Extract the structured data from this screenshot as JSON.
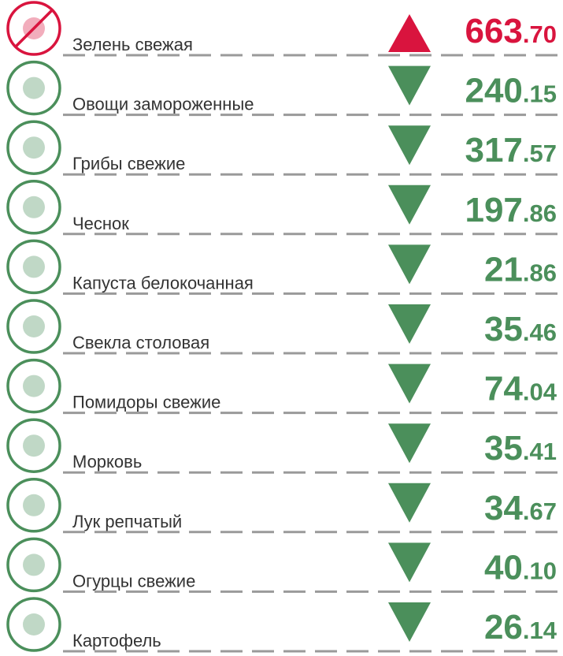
{
  "colors": {
    "up": "#d9143e",
    "down": "#4b8f5b",
    "dash": "#9a9a9a"
  },
  "items": [
    {
      "name": "Зелень свежая",
      "value": "663.70",
      "trend": "up"
    },
    {
      "name": "Овощи замороженные",
      "value": "240.15",
      "trend": "down"
    },
    {
      "name": "Грибы свежие",
      "value": "317.57",
      "trend": "down"
    },
    {
      "name": "Чеснок",
      "value": "197.86",
      "trend": "down"
    },
    {
      "name": "Капуста белокочанная",
      "value": "21.86",
      "trend": "down"
    },
    {
      "name": "Свекла столовая",
      "value": "35.46",
      "trend": "down"
    },
    {
      "name": "Помидоры свежие",
      "value": "74.04",
      "trend": "down"
    },
    {
      "name": "Морковь",
      "value": "35.41",
      "trend": "down"
    },
    {
      "name": "Лук репчатый",
      "value": "34.67",
      "trend": "down"
    },
    {
      "name": "Огурцы свежие",
      "value": "40.10",
      "trend": "down"
    },
    {
      "name": "Картофель",
      "value": "26.14",
      "trend": "down"
    }
  ]
}
